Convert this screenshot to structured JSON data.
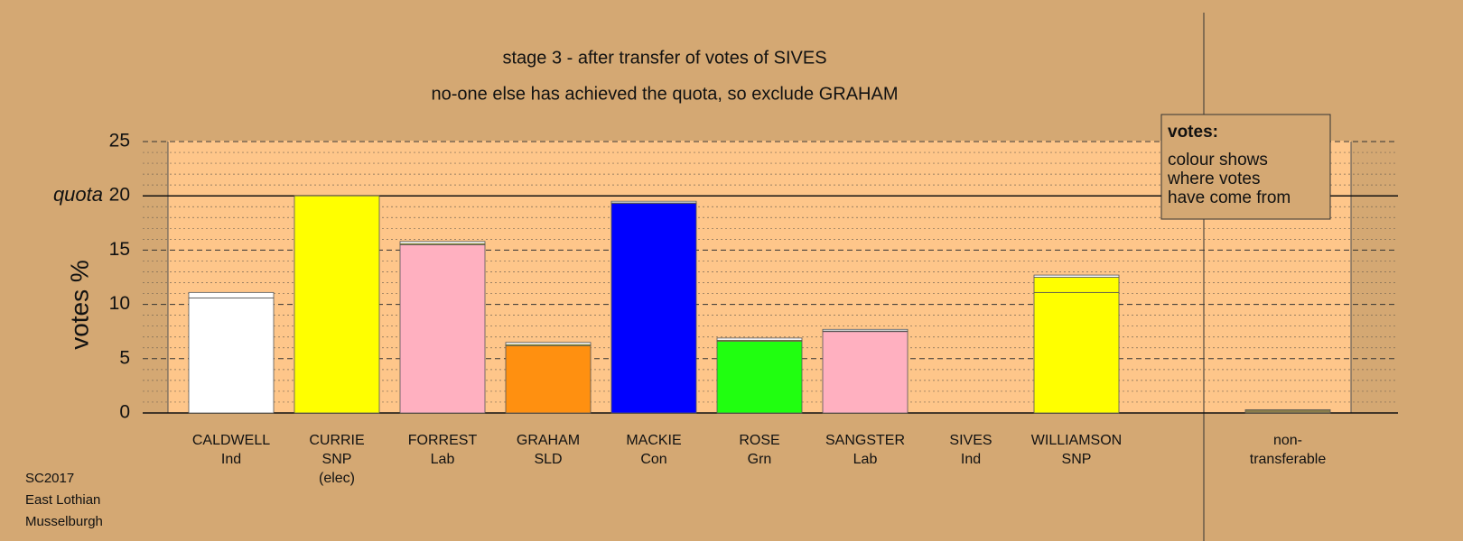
{
  "chart_data": {
    "type": "stacked-bar",
    "title": "stage 3 - after transfer of votes of SIVES",
    "subtitle": "no-one else has achieved the quota, so exclude GRAHAM",
    "y_label": "votes %",
    "categories": [
      [
        "CALDWELL",
        "Ind"
      ],
      [
        "CURRIE",
        "SNP",
        "(elec)"
      ],
      [
        "FORREST",
        "Lab"
      ],
      [
        "GRAHAM",
        "SLD"
      ],
      [
        "MACKIE",
        "Con"
      ],
      [
        "ROSE",
        "Grn"
      ],
      [
        "SANGSTER",
        "Lab"
      ],
      [
        "SIVES",
        "Ind"
      ],
      [
        "WILLIAMSON",
        "SNP"
      ],
      null,
      [
        "non-",
        "transferable"
      ]
    ],
    "series": [
      {
        "colors": [
          "#ffffff",
          "#ffff00",
          "#ffb0c0",
          "#ff9010",
          "#0000ff",
          "#20ff10",
          "#ffb0c0",
          "#ffffff",
          "#ffff00",
          null,
          "#8b7d4a"
        ],
        "values": [
          10.6,
          20,
          15.5,
          6.2,
          19.3,
          6.6,
          7.5,
          0,
          11.1,
          null,
          0.3
        ]
      },
      {
        "color": "#ffff00",
        "values": [
          0,
          0,
          0.1,
          0.1,
          0.05,
          0.1,
          0.05,
          0,
          1.4,
          null,
          0
        ]
      },
      {
        "color": "#ffffff",
        "values": [
          0.5,
          0,
          0.2,
          0.2,
          0.15,
          0.2,
          0.15,
          0,
          0.2,
          null,
          0
        ]
      }
    ],
    "ylim": [
      0,
      25
    ],
    "yticks": [
      0,
      5,
      10,
      15,
      20,
      25
    ],
    "yminorticks": [
      1,
      2,
      3,
      4,
      6,
      7,
      8,
      9,
      11,
      12,
      13,
      14,
      16,
      17,
      18,
      19,
      21,
      22,
      23,
      24
    ],
    "quota": {
      "label": "quota",
      "value": 20
    },
    "grid": true,
    "legend_box": {
      "title": "votes:",
      "lines": [
        "colour shows",
        "where votes",
        "have come from"
      ]
    }
  },
  "footer": [
    "SC2017",
    "East Lothian",
    "Musselburgh"
  ]
}
